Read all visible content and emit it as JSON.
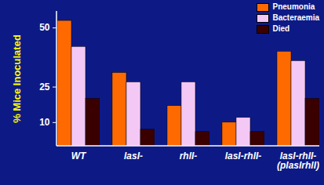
{
  "chart_data": {
    "type": "bar",
    "y_label": "% Mice Inoculated",
    "categories": [
      "WT",
      "lasI-",
      "rhlI-",
      "lasI-rhlI-",
      "lasI-rhlI-\n(plasIrhlI)"
    ],
    "series": [
      {
        "name": "Pneumonia",
        "color": "#ff6a00",
        "values": [
          53,
          31,
          17,
          10,
          40
        ]
      },
      {
        "name": "Bacteraemia",
        "color": "#f4c8f4",
        "values": [
          42,
          27,
          27,
          12,
          36
        ]
      },
      {
        "name": "Died",
        "color": "#3a0000",
        "values": [
          20,
          7,
          6,
          6,
          20
        ]
      }
    ],
    "ylim": [
      0,
      57
    ],
    "yticks": [
      10,
      25,
      50
    ],
    "legend": "top-right"
  }
}
